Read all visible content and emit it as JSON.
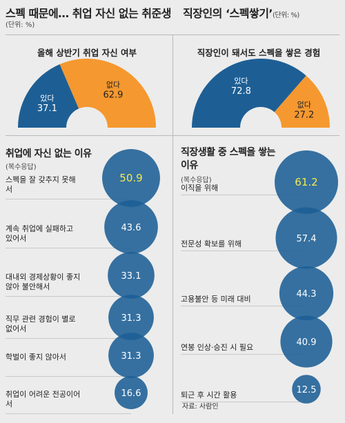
{
  "left": {
    "headline": "스펙 때문에… 취업 자신 없는 취준생",
    "unit": "(단위: %)",
    "pie": {
      "title": "올해 상반기 취업 자신 여부",
      "slices": [
        {
          "label": "있다",
          "value": 37.1,
          "color": "#1d5f95"
        },
        {
          "label": "없다",
          "value": 62.9,
          "color": "#f5982f"
        }
      ]
    },
    "reasons": {
      "title": "취업에 자신 없는 이유",
      "note": "(복수응답)",
      "items": [
        {
          "label": "스펙을 잘 갖추지 못해서",
          "value": 50.9
        },
        {
          "label": "계속 취업에 실패하고 있어서",
          "value": 43.6
        },
        {
          "label": "대내외 경제상황이 좋지 않아 불안해서",
          "value": 33.1
        },
        {
          "label": "직무 관련 경험이 별로 없어서",
          "value": 31.3
        },
        {
          "label": "학벌이 좋지 않아서",
          "value": 31.3
        },
        {
          "label": "취업이 어려운 전공이어서",
          "value": 16.6
        }
      ]
    }
  },
  "right": {
    "headline": "직장인의 ‘스펙쌓기’",
    "unit": "(단위: %)",
    "pie": {
      "title": "직장인이 돼서도 스펙을 쌓은 경험",
      "slices": [
        {
          "label": "있다",
          "value": 72.8,
          "color": "#1d5f95"
        },
        {
          "label": "없다",
          "value": 27.2,
          "color": "#f5982f"
        }
      ]
    },
    "reasons": {
      "title": "직장생활 중 스펙을 쌓는 이유",
      "note": "(복수응답)",
      "items": [
        {
          "label": "이직을 위해",
          "value": 61.2
        },
        {
          "label": "전문성 확보를 위해",
          "value": 57.4
        },
        {
          "label": "고용불안 등 미래 대비",
          "value": 44.3
        },
        {
          "label": "연봉 인상·승진 시 필요",
          "value": 40.9
        },
        {
          "label": "퇴근 후 시간 활용",
          "value": 12.5
        }
      ]
    }
  },
  "source": "자료: 사람인",
  "chart_data": [
    {
      "type": "pie",
      "title": "올해 상반기 취업 자신 여부",
      "categories": [
        "있다",
        "없다"
      ],
      "values": [
        37.1,
        62.9
      ]
    },
    {
      "type": "bar",
      "title": "취업에 자신 없는 이유",
      "categories": [
        "스펙을 잘 갖추지 못해서",
        "계속 취업에 실패하고 있어서",
        "대내외 경제상황이 좋지 않아 불안해서",
        "직무 관련 경험이 별로 없어서",
        "학벌이 좋지 않아서",
        "취업이 어려운 전공이어서"
      ],
      "values": [
        50.9,
        43.6,
        33.1,
        31.3,
        31.3,
        16.6
      ]
    },
    {
      "type": "pie",
      "title": "직장인이 돼서도 스펙을 쌓은 경험",
      "categories": [
        "있다",
        "없다"
      ],
      "values": [
        72.8,
        27.2
      ]
    },
    {
      "type": "bar",
      "title": "직장생활 중 스펙을 쌓는 이유",
      "categories": [
        "이직을 위해",
        "전문성 확보를 위해",
        "고용불안 등 미래 대비",
        "연봉 인상·승진 시 필요",
        "퇴근 후 시간 활용"
      ],
      "values": [
        61.2,
        57.4,
        44.3,
        40.9,
        12.5
      ]
    }
  ]
}
